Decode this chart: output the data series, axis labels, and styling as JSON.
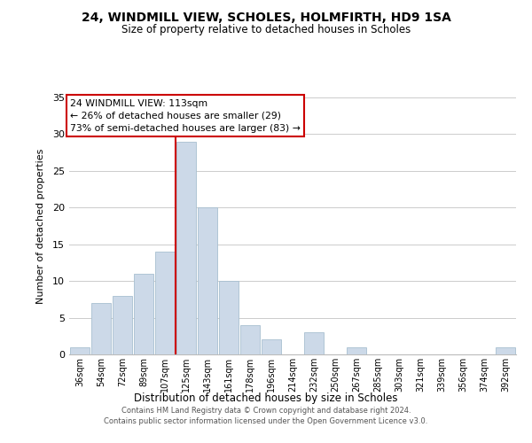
{
  "title": "24, WINDMILL VIEW, SCHOLES, HOLMFIRTH, HD9 1SA",
  "subtitle": "Size of property relative to detached houses in Scholes",
  "xlabel": "Distribution of detached houses by size in Scholes",
  "ylabel": "Number of detached properties",
  "bar_color": "#ccd9e8",
  "bar_edge_color": "#a8bfd0",
  "categories": [
    "36sqm",
    "54sqm",
    "72sqm",
    "89sqm",
    "107sqm",
    "125sqm",
    "143sqm",
    "161sqm",
    "178sqm",
    "196sqm",
    "214sqm",
    "232sqm",
    "250sqm",
    "267sqm",
    "285sqm",
    "303sqm",
    "321sqm",
    "339sqm",
    "356sqm",
    "374sqm",
    "392sqm"
  ],
  "values": [
    1,
    7,
    8,
    11,
    14,
    29,
    20,
    10,
    4,
    2,
    0,
    3,
    0,
    1,
    0,
    0,
    0,
    0,
    0,
    0,
    1
  ],
  "ylim": [
    0,
    35
  ],
  "yticks": [
    0,
    5,
    10,
    15,
    20,
    25,
    30,
    35
  ],
  "vline_x": 4.5,
  "vline_color": "#cc0000",
  "marker_label": "24 WINDMILL VIEW: 113sqm",
  "annotation_line1": "← 26% of detached houses are smaller (29)",
  "annotation_line2": "73% of semi-detached houses are larger (83) →",
  "annotation_box_color": "#ffffff",
  "annotation_box_edge": "#cc0000",
  "footer_line1": "Contains HM Land Registry data © Crown copyright and database right 2024.",
  "footer_line2": "Contains public sector information licensed under the Open Government Licence v3.0.",
  "background_color": "#ffffff",
  "grid_color": "#cccccc"
}
